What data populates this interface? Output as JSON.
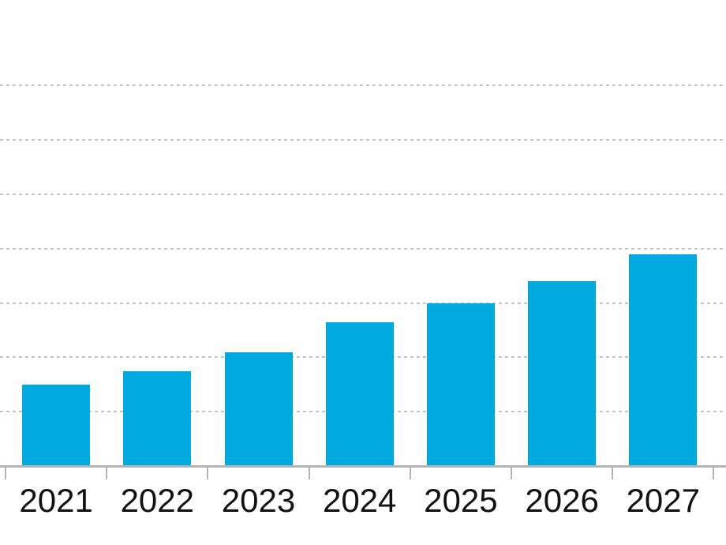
{
  "chart_data": {
    "type": "bar",
    "title": "",
    "xlabel": "",
    "ylabel": "",
    "categories": [
      "2021",
      "2022",
      "2023",
      "2024",
      "2025",
      "2026",
      "2027"
    ],
    "values": [
      1.5,
      1.75,
      2.1,
      2.65,
      3.0,
      3.4,
      3.9
    ],
    "series_name": "",
    "y_axis": {
      "labels_visible": false,
      "unit": "gridline-interval",
      "gridlines_at": [
        1,
        2,
        3,
        4,
        5,
        6,
        7
      ]
    },
    "ylim": [
      0,
      8.6
    ],
    "grid": "horizontal-dashed",
    "legend": "none",
    "colors": {
      "bar": "#00a9e0",
      "grid": "#c4c4c4",
      "axis": "#b3b3b3",
      "label": "#111111"
    }
  }
}
